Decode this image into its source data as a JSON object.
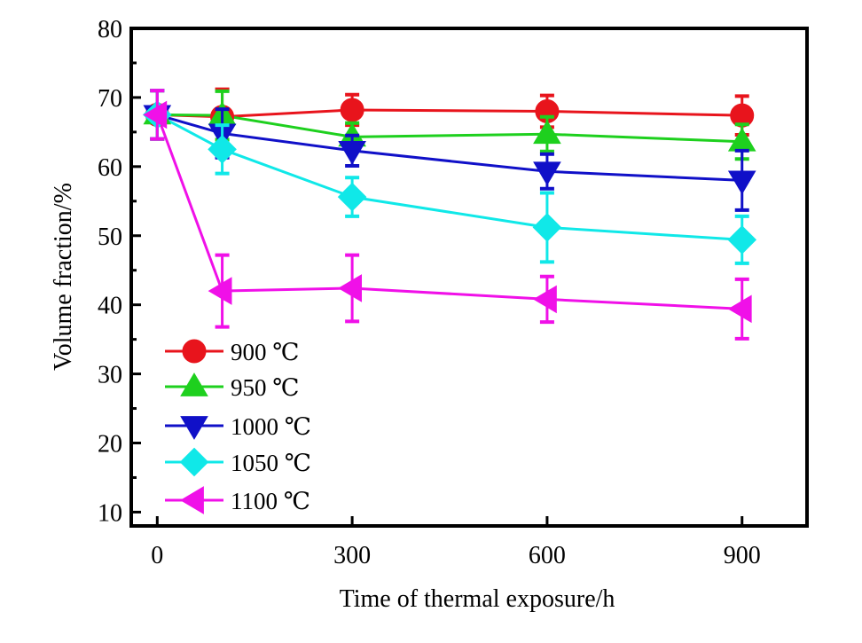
{
  "chart_data": {
    "type": "line",
    "title": "",
    "xlabel": "Time of thermal exposure/h",
    "ylabel": "Volume fraction/%",
    "xlim": [
      -40,
      1000
    ],
    "ylim": [
      8,
      80
    ],
    "xticks": [
      0,
      300,
      600,
      900
    ],
    "xtick_labels": [
      "0",
      "300",
      "600",
      "900"
    ],
    "yticks": [
      10,
      20,
      30,
      40,
      50,
      60,
      70,
      80
    ],
    "ytick_labels": [
      "10",
      "20",
      "30",
      "40",
      "50",
      "60",
      "70",
      "80"
    ],
    "y_minor_step": 5,
    "grid": false,
    "legend_position": "lower-left",
    "x": [
      0,
      100,
      300,
      600,
      900
    ],
    "series": [
      {
        "name": "900 ℃",
        "color": "#e8141c",
        "marker": "circle",
        "values": [
          67.5,
          67.2,
          68.2,
          68.0,
          67.4
        ],
        "errors": [
          3.5,
          4.0,
          2.2,
          2.3,
          2.8
        ]
      },
      {
        "name": "950 ℃",
        "color": "#1ed01e",
        "marker": "triangle-up",
        "values": [
          67.5,
          67.4,
          64.3,
          64.7,
          63.6
        ],
        "errors": [
          3.5,
          3.5,
          2.0,
          2.5,
          2.5
        ]
      },
      {
        "name": "1000 ℃",
        "color": "#1010c8",
        "marker": "triangle-down",
        "values": [
          67.5,
          64.8,
          62.3,
          59.3,
          58.0
        ],
        "errors": [
          3.5,
          3.5,
          2.2,
          2.5,
          4.3
        ]
      },
      {
        "name": "1050 ℃",
        "color": "#10e8e8",
        "marker": "diamond",
        "values": [
          67.5,
          62.5,
          55.6,
          51.2,
          49.4
        ],
        "errors": [
          3.5,
          3.5,
          2.8,
          5.0,
          3.4
        ]
      },
      {
        "name": "1100 ℃",
        "color": "#f010e8",
        "marker": "triangle-left",
        "values": [
          67.5,
          42.0,
          42.4,
          40.8,
          39.4
        ],
        "errors": [
          3.5,
          5.2,
          4.8,
          3.3,
          4.3
        ]
      }
    ]
  }
}
